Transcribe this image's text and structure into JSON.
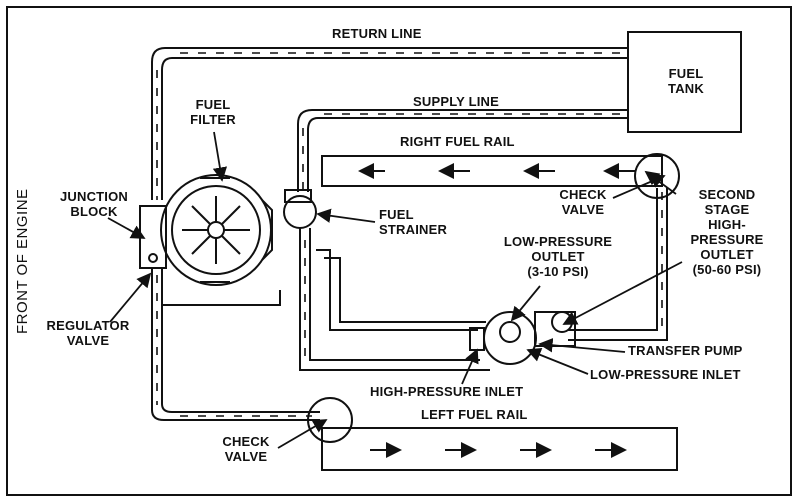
{
  "labels": {
    "return_line": "RETURN LINE",
    "fuel_tank": "FUEL\nTANK",
    "supply_line": "SUPPLY LINE",
    "fuel_filter": "FUEL\nFILTER",
    "right_fuel_rail": "RIGHT FUEL RAIL",
    "junction_block": "JUNCTION\nBLOCK",
    "fuel_strainer": "FUEL\nSTRAINER",
    "check_valve_right": "CHECK\nVALVE",
    "second_stage": "SECOND\nSTAGE\nHIGH-\nPRESSURE\nOUTLET\n(50-60 PSI)",
    "low_pressure_outlet": "LOW-PRESSURE\nOUTLET\n(3-10 PSI)",
    "regulator_valve": "REGULATOR\nVALVE",
    "transfer_pump": "TRANSFER PUMP",
    "high_pressure_inlet": "HIGH-PRESSURE INLET",
    "low_pressure_inlet": "LOW-PRESSURE INLET",
    "left_fuel_rail": "LEFT FUEL RAIL",
    "check_valve_left": "CHECK\nVALVE",
    "front_of_engine": "FRONT OF ENGINE"
  },
  "colors": {
    "line": "#111111",
    "background": "#ffffff"
  }
}
